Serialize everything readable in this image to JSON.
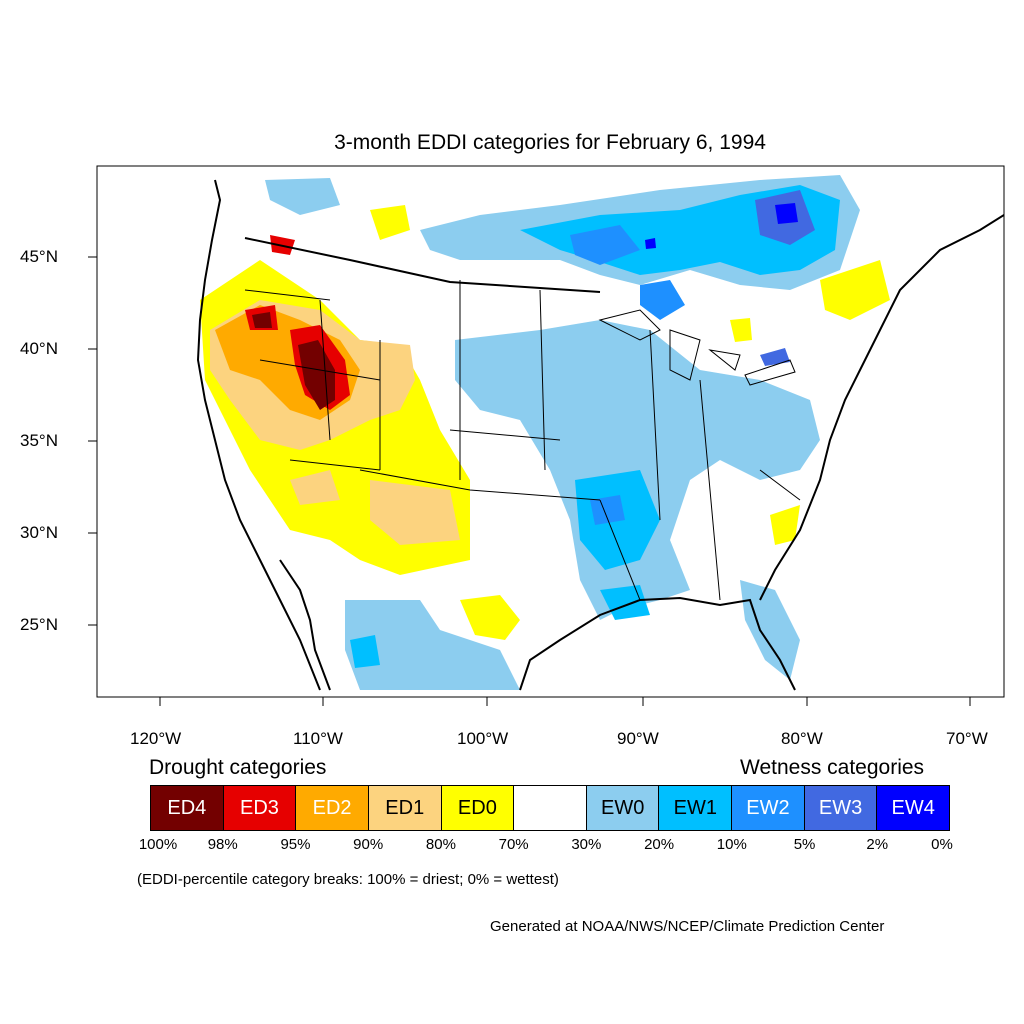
{
  "title": "3-month EDDI categories for February 6, 1994",
  "lat_labels": [
    "45°N",
    "40°N",
    "35°N",
    "30°N",
    "25°N"
  ],
  "lon_labels": [
    "120°W",
    "110°W",
    "100°W",
    "90°W",
    "80°W",
    "70°W"
  ],
  "legend": {
    "drought_heading": "Drought categories",
    "wetness_heading": "Wetness categories",
    "categories": [
      {
        "label": "ED4",
        "color": "#730000",
        "text_color": "#ffffff"
      },
      {
        "label": "ED3",
        "color": "#e60000",
        "text_color": "#ffffff"
      },
      {
        "label": "ED2",
        "color": "#ffaa00",
        "text_color": "#ffffff"
      },
      {
        "label": "ED1",
        "color": "#fcd37f",
        "text_color": "#000000"
      },
      {
        "label": "ED0",
        "color": "#ffff00",
        "text_color": "#000000"
      },
      {
        "label": "",
        "color": "#ffffff",
        "text_color": "#000000"
      },
      {
        "label": "EW0",
        "color": "#8ccdef",
        "text_color": "#000000"
      },
      {
        "label": "EW1",
        "color": "#00bfff",
        "text_color": "#000000"
      },
      {
        "label": "EW2",
        "color": "#1e90ff",
        "text_color": "#ffffff"
      },
      {
        "label": "EW3",
        "color": "#4169e1",
        "text_color": "#ffffff"
      },
      {
        "label": "EW4",
        "color": "#0000ff",
        "text_color": "#ffffff"
      }
    ],
    "percentiles": [
      "100%",
      "98%",
      "95%",
      "90%",
      "80%",
      "70%",
      "30%",
      "20%",
      "10%",
      "5%",
      "2%",
      "0%"
    ]
  },
  "note": "(EDDI-percentile category breaks: 100% = driest; 0% = wettest)",
  "credit": "Generated at NOAA/NWS/NCEP/Climate Prediction Center"
}
